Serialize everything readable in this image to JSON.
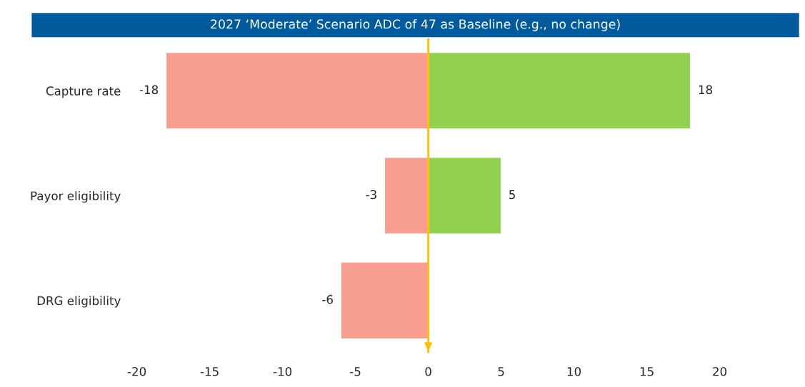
{
  "chart_data": {
    "type": "bar",
    "orientation": "horizontal",
    "stacked": true,
    "title": "2027 ‘Moderate’ Scenario ADC of 47 as Baseline (e.g., no change)",
    "categories": [
      "Capture rate",
      "Payor eligibility",
      "DRG eligibility"
    ],
    "series": [
      {
        "color": "#f79e90",
        "values": [
          -18,
          -3,
          -6
        ]
      },
      {
        "color": "#92d050",
        "values": [
          18,
          5,
          null
        ]
      }
    ],
    "xlim": [
      -20,
      20
    ],
    "xticks": [
      -20,
      -15,
      -10,
      -5,
      0,
      5,
      10,
      15,
      20
    ],
    "data_labels": true,
    "grid": false,
    "legend": false,
    "ref_lines": [
      {
        "axis": "x",
        "value": 0,
        "color": "#ffc000"
      }
    ]
  }
}
